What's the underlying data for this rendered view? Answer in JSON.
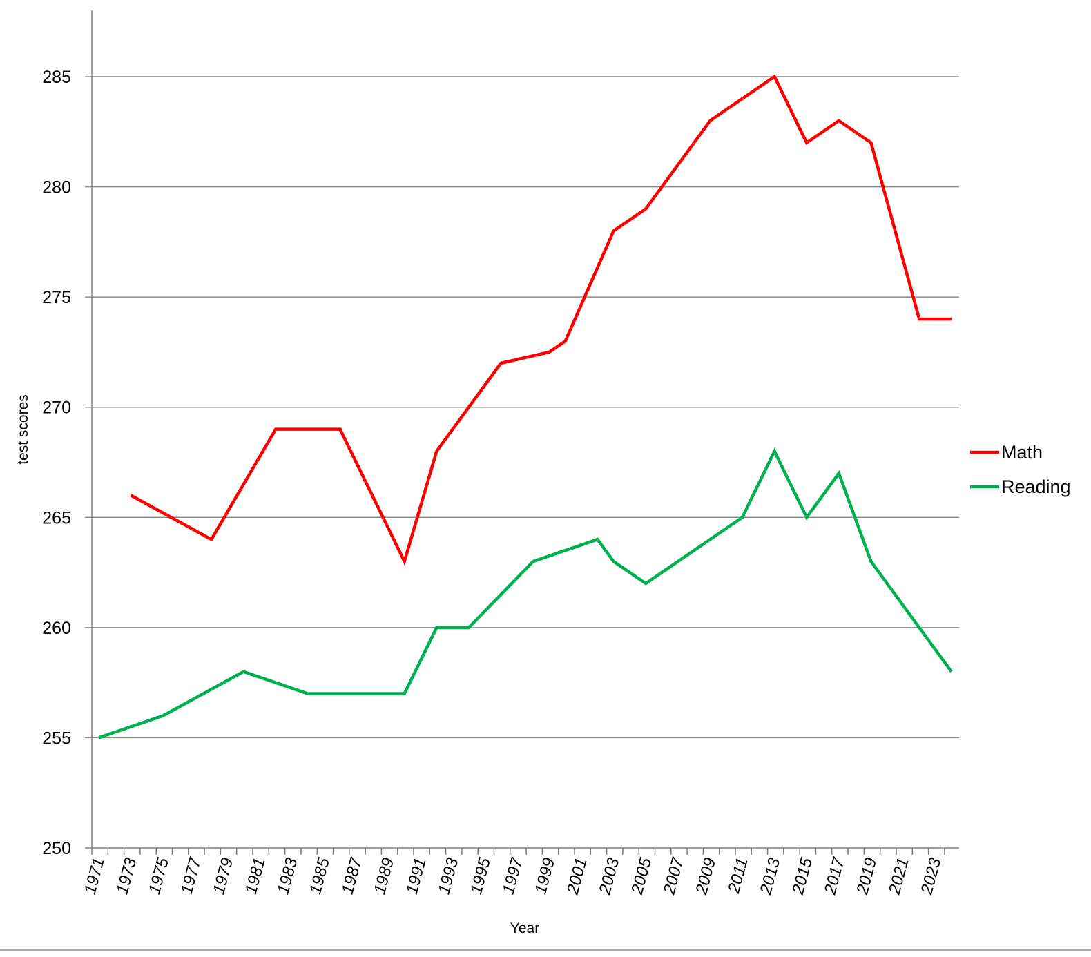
{
  "chart_data": {
    "type": "line",
    "xlabel": "Year",
    "ylabel": "test scores",
    "ylim": [
      250,
      285
    ],
    "yticks": [
      250,
      255,
      260,
      265,
      270,
      275,
      280,
      285
    ],
    "xlim": [
      1971,
      2024
    ],
    "xticks": [
      1971,
      1973,
      1975,
      1977,
      1979,
      1981,
      1983,
      1985,
      1987,
      1989,
      1991,
      1993,
      1995,
      1997,
      1999,
      2001,
      2003,
      2005,
      2007,
      2009,
      2011,
      2013,
      2015,
      2017,
      2019,
      2021,
      2023
    ],
    "grid": true,
    "legend_position": "right",
    "series": [
      {
        "name": "Math",
        "color": "#ff0000",
        "points": [
          [
            1973,
            266
          ],
          [
            1978,
            264
          ],
          [
            1982,
            269
          ],
          [
            1986,
            269
          ],
          [
            1990,
            263
          ],
          [
            1992,
            268
          ],
          [
            1994,
            270
          ],
          [
            1996,
            272
          ],
          [
            1999,
            272.5
          ],
          [
            2000,
            273
          ],
          [
            2003,
            278
          ],
          [
            2005,
            279
          ],
          [
            2009,
            283
          ],
          [
            2011,
            284
          ],
          [
            2013,
            285
          ],
          [
            2015,
            282
          ],
          [
            2017,
            283
          ],
          [
            2019,
            282
          ],
          [
            2022,
            274
          ],
          [
            2024,
            274
          ]
        ]
      },
      {
        "name": "Reading",
        "color": "#00b050",
        "points": [
          [
            1971,
            255
          ],
          [
            1975,
            256
          ],
          [
            1980,
            258
          ],
          [
            1984,
            257
          ],
          [
            1988,
            257
          ],
          [
            1990,
            257
          ],
          [
            1992,
            260
          ],
          [
            1994,
            260
          ],
          [
            1996,
            261.5
          ],
          [
            1998,
            263
          ],
          [
            2002,
            264
          ],
          [
            2003,
            263
          ],
          [
            2005,
            262
          ],
          [
            2009,
            264
          ],
          [
            2011,
            265
          ],
          [
            2013,
            268
          ],
          [
            2015,
            265
          ],
          [
            2017,
            267
          ],
          [
            2019,
            263
          ],
          [
            2022,
            260
          ],
          [
            2024,
            258
          ]
        ]
      }
    ]
  }
}
